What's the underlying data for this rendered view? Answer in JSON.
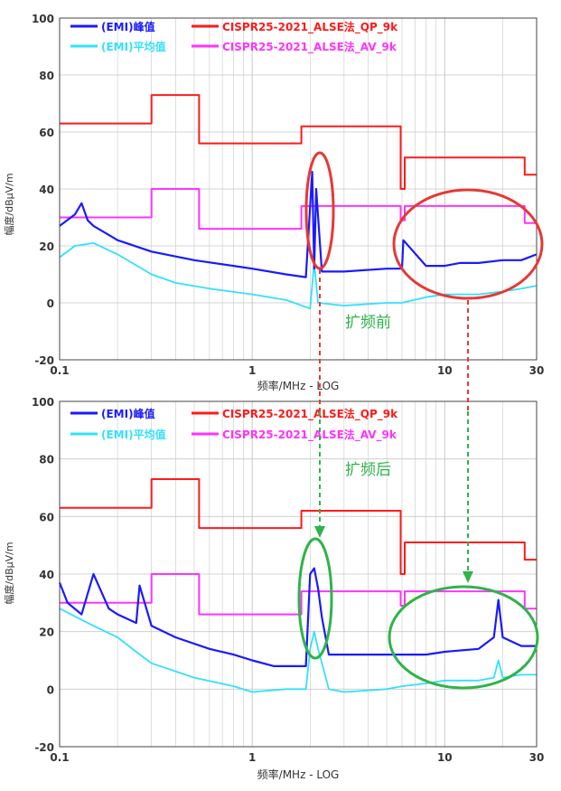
{
  "colors": {
    "peak": "#1a1aff",
    "average": "#33e0ff",
    "qp_limit": "#ff1a1a",
    "av_limit": "#ff33ff",
    "grid": "#c8c8c8",
    "annotation_red": "#e53935",
    "annotation_green": "#2fb34a",
    "annotation_text": "#2fb34a"
  },
  "chart_data": [
    {
      "type": "line",
      "x_scale": "log",
      "xlim": [
        0.1,
        30
      ],
      "ylim": [
        -20,
        100
      ],
      "xlabel": "频率/MHz - LOG",
      "ylabel": "幅度/dBμV/m",
      "x_ticks": [
        "0.1",
        "1",
        "10",
        "30"
      ],
      "y_ticks": [
        "-20",
        "0",
        "20",
        "40",
        "60",
        "80",
        "100"
      ],
      "grid": true,
      "legend": [
        "(EMI)峰值",
        "(EMI)平均值",
        "CISPR25-2021_ALSE法_QP_9k",
        "CISPR25-2021_ALSE法_AV_9k"
      ],
      "annotation": "扩频前",
      "series": [
        {
          "name": "(EMI)峰值",
          "x": [
            0.1,
            0.12,
            0.13,
            0.14,
            0.15,
            0.2,
            0.3,
            0.5,
            0.8,
            1,
            1.5,
            1.9,
            2.05,
            2.1,
            2.15,
            2.3,
            3,
            5,
            6,
            6.1,
            8,
            10,
            12,
            15,
            20,
            25,
            30
          ],
          "y": [
            27,
            31,
            35,
            29,
            27,
            22,
            18,
            15,
            13,
            12,
            10,
            9,
            46,
            12,
            40,
            11,
            11,
            12,
            12,
            22,
            13,
            13,
            14,
            14,
            15,
            15,
            17
          ]
        },
        {
          "name": "(EMI)平均值",
          "x": [
            0.1,
            0.12,
            0.15,
            0.2,
            0.3,
            0.4,
            0.6,
            1,
            1.5,
            2,
            2.1,
            2.2,
            3,
            5,
            6,
            8,
            10,
            15,
            20,
            25,
            30
          ],
          "y": [
            16,
            20,
            21,
            17,
            10,
            7,
            5,
            3,
            1,
            -2,
            14,
            0,
            -1,
            0,
            0,
            2,
            3,
            3,
            4,
            5,
            6
          ]
        },
        {
          "name": "CISPR25-2021_ALSE法_QP_9k",
          "x": [
            0.1,
            0.3,
            0.3,
            0.53,
            0.53,
            1.8,
            1.8,
            5.9,
            5.9,
            6.2,
            6.2,
            26,
            26,
            30
          ],
          "y": [
            63,
            63,
            73,
            73,
            56,
            56,
            62,
            62,
            40,
            40,
            51,
            51,
            45,
            45
          ]
        },
        {
          "name": "CISPR25-2021_ALSE法_AV_9k",
          "x": [
            0.1,
            0.3,
            0.3,
            0.53,
            0.53,
            1.8,
            1.8,
            5.9,
            5.9,
            6.2,
            6.2,
            26,
            26,
            30
          ],
          "y": [
            30,
            30,
            40,
            40,
            26,
            26,
            34,
            34,
            29,
            29,
            34,
            34,
            28,
            28
          ]
        }
      ]
    },
    {
      "type": "line",
      "x_scale": "log",
      "xlim": [
        0.1,
        30
      ],
      "ylim": [
        -20,
        100
      ],
      "xlabel": "频率/MHz - LOG",
      "ylabel": "幅度/dBμV/m",
      "x_ticks": [
        "0.1",
        "1",
        "10",
        "30"
      ],
      "y_ticks": [
        "-20",
        "0",
        "20",
        "40",
        "60",
        "80",
        "100"
      ],
      "grid": true,
      "legend": [
        "(EMI)峰值",
        "(EMI)平均值",
        "CISPR25-2021_ALSE法_QP_9k",
        "CISPR25-2021_ALSE法_AV_9k"
      ],
      "annotation": "扩频后",
      "series": [
        {
          "name": "(EMI)峰值",
          "x": [
            0.1,
            0.11,
            0.13,
            0.15,
            0.18,
            0.2,
            0.25,
            0.26,
            0.3,
            0.4,
            0.6,
            0.8,
            1,
            1.3,
            1.6,
            1.9,
            2,
            2.1,
            2.2,
            2.3,
            2.5,
            3,
            5,
            6,
            8,
            10,
            15,
            18,
            19,
            20,
            25,
            30
          ],
          "y": [
            37,
            30,
            26,
            40,
            28,
            26,
            23,
            36,
            22,
            18,
            14,
            12,
            10,
            8,
            8,
            8,
            40,
            42,
            35,
            25,
            12,
            12,
            12,
            12,
            12,
            13,
            14,
            18,
            31,
            18,
            15,
            15
          ]
        },
        {
          "name": "(EMI)平均值",
          "x": [
            0.1,
            0.15,
            0.2,
            0.25,
            0.3,
            0.5,
            0.8,
            1,
            1.5,
            1.9,
            2,
            2.1,
            2.2,
            2.5,
            3,
            5,
            6,
            8,
            10,
            15,
            18,
            19,
            20,
            25,
            30
          ],
          "y": [
            28,
            22,
            18,
            13,
            9,
            4,
            1,
            -1,
            0,
            0,
            14,
            20,
            14,
            0,
            -1,
            0,
            1,
            2,
            3,
            3,
            4,
            10,
            4,
            5,
            5
          ]
        },
        {
          "name": "CISPR25-2021_ALSE法_QP_9k",
          "x": [
            0.1,
            0.3,
            0.3,
            0.53,
            0.53,
            1.8,
            1.8,
            5.9,
            5.9,
            6.2,
            6.2,
            26,
            26,
            30
          ],
          "y": [
            63,
            63,
            73,
            73,
            56,
            56,
            62,
            62,
            40,
            40,
            51,
            51,
            45,
            45
          ]
        },
        {
          "name": "CISPR25-2021_ALSE法_AV_9k",
          "x": [
            0.1,
            0.3,
            0.3,
            0.53,
            0.53,
            1.8,
            1.8,
            5.9,
            5.9,
            6.2,
            6.2,
            26,
            26,
            30
          ],
          "y": [
            30,
            30,
            40,
            40,
            26,
            26,
            34,
            34,
            29,
            29,
            34,
            34,
            28,
            28
          ]
        }
      ]
    }
  ]
}
